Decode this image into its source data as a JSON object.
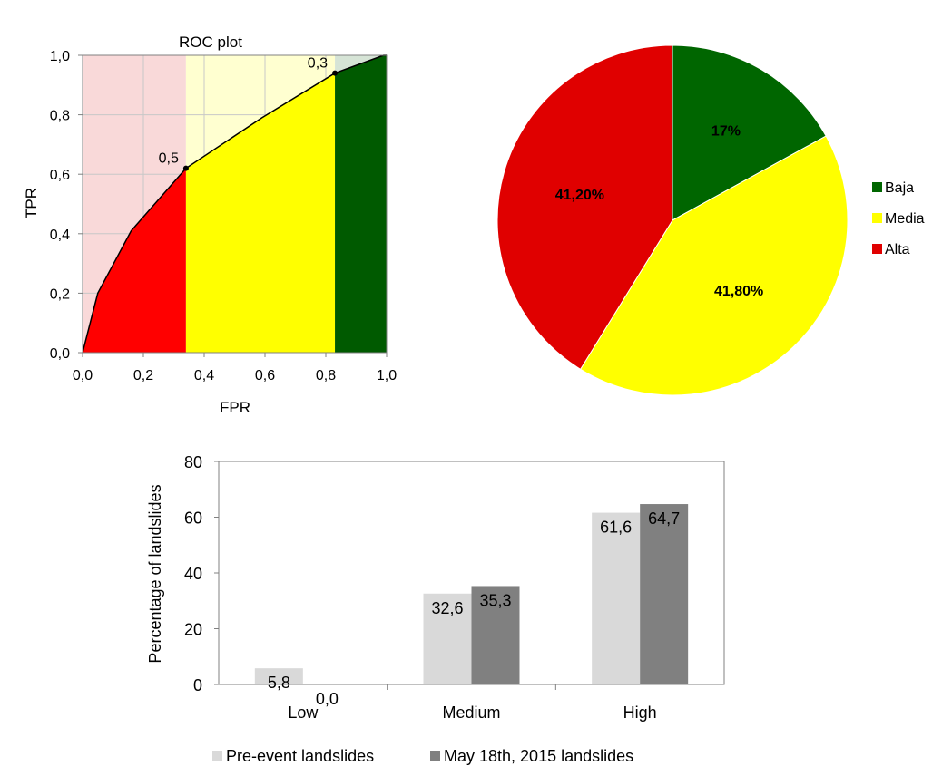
{
  "chart_data": [
    {
      "type": "area",
      "title": "ROC plot",
      "xlabel": "FPR",
      "ylabel": "TPR",
      "xlim": [
        0,
        1
      ],
      "ylim": [
        0,
        1
      ],
      "xticks": [
        "0,0",
        "0,2",
        "0,4",
        "0,6",
        "0,8",
        "1,0"
      ],
      "yticks": [
        "0,0",
        "0,2",
        "0,4",
        "0,6",
        "0,8",
        "1,0"
      ],
      "grid": true,
      "curve": {
        "x": [
          0.0,
          0.05,
          0.16,
          0.34,
          0.59,
          0.83,
          0.99,
          1.0
        ],
        "y": [
          0.0,
          0.2,
          0.41,
          0.62,
          0.79,
          0.94,
          1.0,
          1.0
        ]
      },
      "background_bands": [
        {
          "from": 0.0,
          "to": 0.34,
          "color": "#f9d9d9"
        },
        {
          "from": 0.34,
          "to": 0.83,
          "color": "#ffffd0"
        },
        {
          "from": 0.83,
          "to": 1.0,
          "color": "#d6e4d6"
        }
      ],
      "fill_bands": [
        {
          "from": 0.0,
          "to": 0.34,
          "color": "#ff0000"
        },
        {
          "from": 0.34,
          "to": 0.83,
          "color": "#ffff00"
        },
        {
          "from": 0.83,
          "to": 1.0,
          "color": "#005a00"
        }
      ],
      "points": [
        {
          "x": 0.34,
          "y": 0.62,
          "label": "0,5"
        },
        {
          "x": 0.83,
          "y": 0.94,
          "label": "0,3"
        }
      ]
    },
    {
      "type": "pie",
      "legend_position": "right",
      "slices": [
        {
          "label": "Baja",
          "value": 17.0,
          "text": "17%",
          "color": "#006600"
        },
        {
          "label": "Media",
          "value": 41.8,
          "text": "41,80%",
          "color": "#ffff00"
        },
        {
          "label": "Alta",
          "value": 41.2,
          "text": "41,20%",
          "color": "#e00000"
        }
      ]
    },
    {
      "type": "bar",
      "categories": [
        "Low",
        "Medium",
        "High"
      ],
      "ylabel": "Percentage of landslides",
      "ylim": [
        0,
        80
      ],
      "yticks": [
        "0",
        "20",
        "40",
        "60",
        "80"
      ],
      "legend_position": "bottom",
      "series": [
        {
          "name": "Pre-event landslides",
          "values": [
            5.8,
            32.6,
            61.6
          ],
          "labels": [
            "5,8",
            "32,6",
            "61,6"
          ],
          "color": "#d9d9d9"
        },
        {
          "name": "May 18th, 2015 landslides",
          "values": [
            0.0,
            35.3,
            64.7
          ],
          "labels": [
            "0,0",
            "35,3",
            "64,7"
          ],
          "color": "#808080"
        }
      ]
    }
  ]
}
